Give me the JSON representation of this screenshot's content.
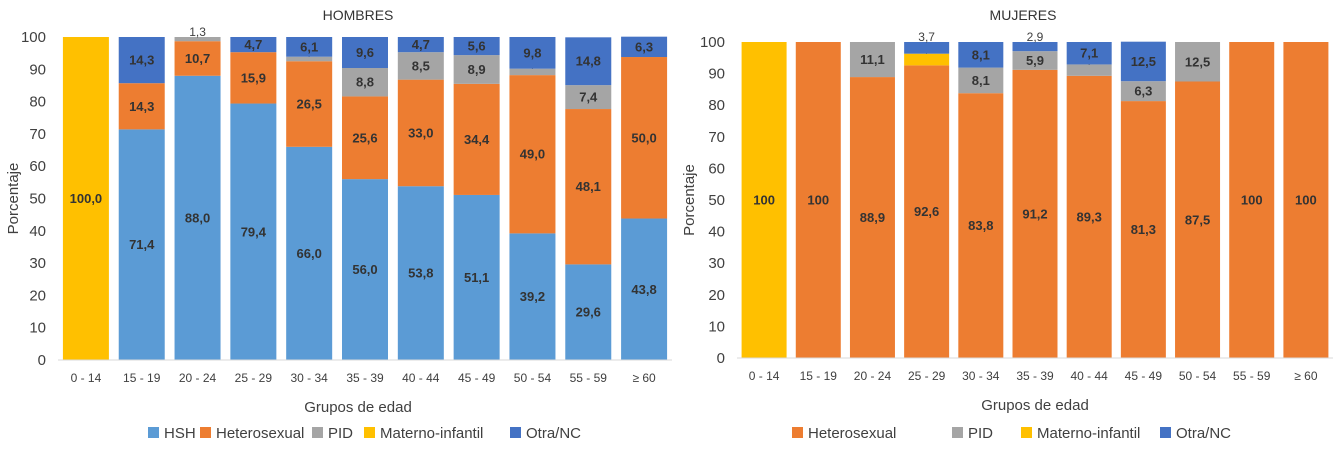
{
  "chart_data": [
    {
      "type": "bar",
      "stacked": true,
      "title": "HOMBRES",
      "xlabel": "Grupos de edad",
      "ylabel": "Porcentaje",
      "ylim": [
        0,
        100
      ],
      "yticks": [
        "0",
        "10",
        "20",
        "30",
        "40",
        "50",
        "60",
        "70",
        "80",
        "90",
        "100"
      ],
      "categories": [
        "0 - 14",
        "15 - 19",
        "20 - 24",
        "25 - 29",
        "30 - 34",
        "35 - 39",
        "40 - 44",
        "45 - 49",
        "50 - 54",
        "55 - 59",
        "≥ 60"
      ],
      "legend_position": "bottom",
      "grid": false,
      "series": [
        {
          "name": "HSH",
          "color": "#5b9bd5",
          "values": [
            0,
            71.4,
            88.0,
            79.4,
            66.0,
            56.0,
            53.8,
            51.1,
            39.2,
            29.6,
            43.8
          ],
          "labels": [
            "",
            "71,4",
            "88,0",
            "79,4",
            "66,0",
            "56,0",
            "53,8",
            "51,1",
            "39,2",
            "29,6",
            "43,8"
          ]
        },
        {
          "name": "Heterosexual",
          "color": "#ed7d31",
          "values": [
            0,
            14.3,
            10.7,
            15.9,
            26.5,
            25.6,
            33.0,
            34.4,
            49.0,
            48.1,
            50.0
          ],
          "labels": [
            "",
            "14,3",
            "10,7",
            "15,9",
            "26,5",
            "25,6",
            "33,0",
            "34,4",
            "49,0",
            "48,1",
            "50,0"
          ]
        },
        {
          "name": "PID",
          "color": "#a5a5a5",
          "values": [
            0,
            0,
            1.3,
            0,
            1.4,
            8.8,
            8.5,
            8.9,
            2.0,
            7.4,
            0
          ],
          "labels": [
            "",
            "",
            "1,3",
            "",
            "1,4",
            "8,8",
            "8,5",
            "8,9",
            "2,0",
            "7,4",
            ""
          ]
        },
        {
          "name": "Materno-infantil",
          "color": "#ffc000",
          "values": [
            100.0,
            0,
            0,
            0,
            0,
            0,
            0,
            0,
            0,
            0,
            0
          ],
          "labels": [
            "100,0",
            "",
            "",
            "",
            "",
            "",
            "",
            "",
            "",
            "",
            ""
          ]
        },
        {
          "name": "Otra/NC",
          "color": "#4472c4",
          "values": [
            0,
            14.3,
            0,
            4.7,
            6.1,
            9.6,
            4.7,
            5.6,
            9.8,
            14.8,
            6.3
          ],
          "labels": [
            "",
            "14,3",
            "",
            "4,7",
            "6,1",
            "9,6",
            "4,7",
            "5,6",
            "9,8",
            "14,8",
            "6,3"
          ]
        }
      ]
    },
    {
      "type": "bar",
      "stacked": true,
      "title": "MUJERES",
      "xlabel": "Grupos de edad",
      "ylabel": "Porcentaje",
      "ylim": [
        0,
        100
      ],
      "yticks": [
        "0",
        "10",
        "20",
        "30",
        "40",
        "50",
        "60",
        "70",
        "80",
        "90",
        "100"
      ],
      "categories": [
        "0 - 14",
        "15 - 19",
        "20 - 24",
        "25 - 29",
        "30 - 34",
        "35 - 39",
        "40 - 44",
        "45 - 49",
        "50 - 54",
        "55 - 59",
        "≥ 60"
      ],
      "legend_position": "bottom",
      "grid": false,
      "series": [
        {
          "name": "Heterosexual",
          "color": "#ed7d31",
          "values": [
            0,
            100,
            88.9,
            92.6,
            83.8,
            91.2,
            89.3,
            81.3,
            87.5,
            100,
            100
          ],
          "labels": [
            "",
            "100",
            "88,9",
            "92,6",
            "83,8",
            "91,2",
            "89,3",
            "81,3",
            "87,5",
            "100",
            "100"
          ]
        },
        {
          "name": "PID",
          "color": "#a5a5a5",
          "values": [
            0,
            0,
            11.1,
            0,
            8.1,
            5.9,
            3.6,
            6.3,
            12.5,
            0,
            0
          ],
          "labels": [
            "",
            "",
            "11,1",
            "",
            "8,1",
            "5,9",
            "3,6",
            "6,3",
            "12,5",
            "",
            ""
          ]
        },
        {
          "name": "Materno-infantil",
          "color": "#ffc000",
          "values": [
            100,
            0,
            0,
            3.7,
            0,
            0,
            0,
            0,
            0,
            0,
            0
          ],
          "labels": [
            "100",
            "",
            "",
            "3,7",
            "",
            "",
            "",
            "",
            "",
            "",
            ""
          ]
        },
        {
          "name": "Otra/NC",
          "color": "#4472c4",
          "values": [
            0,
            0,
            0,
            3.7,
            8.1,
            2.9,
            7.1,
            12.5,
            0,
            0,
            0
          ],
          "labels": [
            "",
            "",
            "",
            "3,7",
            "8,1",
            "2,9",
            "7,1",
            "12,5",
            "",
            "",
            ""
          ]
        }
      ]
    }
  ]
}
